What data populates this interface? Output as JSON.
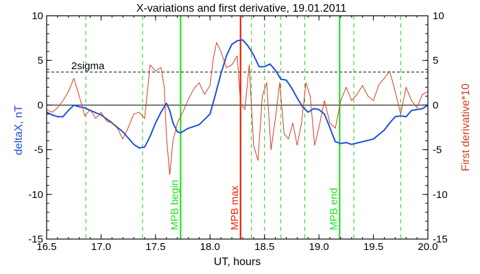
{
  "chart_data": {
    "type": "line",
    "title": "X-variations and first derivative, 19.01.2011",
    "xlabel": "UT, hours",
    "ylabel_left": "deltaX, nT",
    "ylabel_right": "First derivative*10",
    "xlim": [
      16.5,
      20.0
    ],
    "ylim": [
      -15,
      10
    ],
    "xticks": [
      "16.5",
      "17.0",
      "17.5",
      "18.0",
      "18.5",
      "19.0",
      "19.5",
      "20.0"
    ],
    "xtick_values": [
      16.5,
      17.0,
      17.5,
      18.0,
      18.5,
      19.0,
      19.5,
      20.0
    ],
    "yticks": [
      "10",
      "5",
      "0",
      "-5",
      "-10",
      "-15"
    ],
    "ytick_values": [
      10,
      5,
      0,
      -5,
      -10,
      -15
    ],
    "sigma_label": "2sigma",
    "sigma_value": 3.7,
    "colors": {
      "deltaX": "#1a4fd6",
      "derivative": "#d13a1a",
      "mpb_bounds": "#22dd22",
      "mpb_max": "#ee2200",
      "grid_dashed": "#22cc22"
    },
    "vertical_markers": [
      {
        "x": 17.73,
        "label": "MPB begin",
        "role": "bound"
      },
      {
        "x": 18.28,
        "label": "MPB max",
        "role": "max"
      },
      {
        "x": 19.19,
        "label": "MPB end",
        "role": "bound"
      }
    ],
    "dashed_verticals": [
      16.86,
      17.38,
      18.38,
      18.5,
      18.65,
      18.87,
      19.32,
      19.75
    ],
    "series": [
      {
        "name": "deltaX",
        "color": "#1a4fd6",
        "x": [
          16.5,
          16.55,
          16.6,
          16.65,
          16.7,
          16.75,
          16.8,
          16.85,
          16.9,
          17.0,
          17.1,
          17.2,
          17.3,
          17.35,
          17.4,
          17.45,
          17.5,
          17.55,
          17.6,
          17.63,
          17.66,
          17.7,
          17.73,
          17.8,
          17.9,
          18.0,
          18.05,
          18.1,
          18.15,
          18.2,
          18.25,
          18.3,
          18.35,
          18.4,
          18.45,
          18.5,
          18.55,
          18.6,
          18.65,
          18.7,
          18.75,
          18.8,
          18.85,
          18.9,
          18.95,
          19.0,
          19.05,
          19.1,
          19.15,
          19.2,
          19.25,
          19.3,
          19.4,
          19.5,
          19.6,
          19.65,
          19.7,
          19.75,
          19.8,
          19.85,
          19.9,
          19.95,
          20.0
        ],
        "y": [
          -0.8,
          -1.1,
          -1.3,
          -1.3,
          -0.6,
          0.0,
          -0.2,
          -0.3,
          -0.6,
          -1.1,
          -2.0,
          -3.0,
          -4.4,
          -4.8,
          -4.7,
          -3.5,
          -2.0,
          -0.8,
          0.2,
          -0.6,
          -2.0,
          -3.0,
          -3.1,
          -2.6,
          -2.2,
          -1.0,
          1.2,
          3.5,
          5.5,
          6.8,
          7.2,
          7.3,
          6.6,
          5.6,
          4.3,
          4.3,
          4.6,
          3.9,
          2.9,
          2.8,
          1.9,
          0.8,
          -0.2,
          -0.8,
          -0.4,
          -0.5,
          -1.0,
          -2.5,
          -4.1,
          -4.3,
          -4.2,
          -4.4,
          -4.1,
          -3.8,
          -2.8,
          -2.0,
          -1.3,
          -1.2,
          -1.3,
          -0.6,
          -0.5,
          -0.4,
          0.0
        ]
      },
      {
        "name": "First derivative*10",
        "color": "#d13a1a",
        "x": [
          16.5,
          16.55,
          16.6,
          16.65,
          16.7,
          16.75,
          16.8,
          16.85,
          16.9,
          16.95,
          17.0,
          17.05,
          17.1,
          17.15,
          17.2,
          17.25,
          17.3,
          17.35,
          17.4,
          17.45,
          17.5,
          17.55,
          17.58,
          17.6,
          17.63,
          17.66,
          17.7,
          17.75,
          17.8,
          17.85,
          17.9,
          17.95,
          18.0,
          18.03,
          18.06,
          18.1,
          18.15,
          18.2,
          18.25,
          18.28,
          18.32,
          18.36,
          18.4,
          18.44,
          18.48,
          18.52,
          18.56,
          18.6,
          18.64,
          18.68,
          18.72,
          18.76,
          18.8,
          18.84,
          18.88,
          18.92,
          18.96,
          19.0,
          19.05,
          19.1,
          19.15,
          19.2,
          19.25,
          19.3,
          19.35,
          19.4,
          19.45,
          19.5,
          19.55,
          19.6,
          19.65,
          19.7,
          19.75,
          19.8,
          19.85,
          19.9,
          19.95,
          20.0
        ],
        "y": [
          -0.5,
          -0.8,
          -0.3,
          0.5,
          1.5,
          3.0,
          1.0,
          -1.2,
          -0.5,
          -1.5,
          -0.8,
          -1.8,
          -2.0,
          -2.6,
          -3.8,
          -2.5,
          -1.0,
          -0.8,
          -1.5,
          4.5,
          3.8,
          4.2,
          2.0,
          -3.5,
          -7.8,
          -4.0,
          -2.0,
          -0.8,
          0.6,
          1.8,
          2.5,
          1.2,
          2.2,
          5.2,
          7.0,
          6.0,
          4.2,
          4.5,
          5.5,
          0.2,
          -0.5,
          4.5,
          -4.5,
          -6.2,
          1.0,
          2.5,
          -5.0,
          -1.5,
          2.5,
          -3.2,
          -3.8,
          -2.0,
          -4.5,
          -2.0,
          2.5,
          1.0,
          -4.5,
          -2.5,
          0.5,
          -2.0,
          -2.6,
          0.5,
          2.0,
          0.5,
          1.2,
          2.2,
          1.0,
          0.5,
          2.3,
          3.0,
          3.8,
          1.5,
          -1.0,
          2.0,
          0.5,
          -0.3,
          1.2,
          1.5
        ]
      }
    ]
  }
}
